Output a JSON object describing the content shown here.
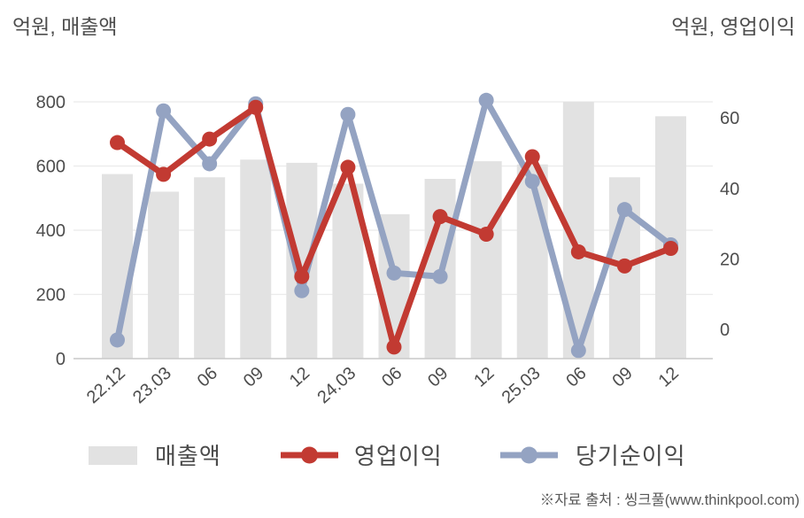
{
  "titles": {
    "left_axis_unit": "억원, 매출액",
    "right_axis_unit": "억원, 영업이익"
  },
  "footer": {
    "source": "※자료 출처 : 씽크풀(www.thinkpool.com)"
  },
  "colors": {
    "bar": "#e2e2e2",
    "operating_profit_line": "#c23a32",
    "net_profit_line": "#94a3c2",
    "gridline": "#ebebeb",
    "axis_line": "#c9c9c9",
    "text": "#4d4d4d"
  },
  "chart_data": {
    "type": "bar",
    "subtype": "combo bar+line, dual y-axis",
    "categories": [
      "22.12",
      "23.03",
      "06",
      "09",
      "12",
      "24.03",
      "06",
      "09",
      "12",
      "25.03",
      "06",
      "09",
      "12"
    ],
    "series": [
      {
        "name": "매출액",
        "type": "bar",
        "yaxis": "left",
        "color": "#e2e2e2",
        "values": [
          575,
          520,
          565,
          620,
          610,
          545,
          450,
          560,
          615,
          605,
          800,
          565,
          755
        ]
      },
      {
        "name": "영업이익",
        "type": "line",
        "yaxis": "right",
        "color": "#c23a32",
        "values": [
          53,
          44,
          54,
          63,
          15,
          46,
          -5,
          32,
          27,
          49,
          22,
          18,
          23
        ]
      },
      {
        "name": "당기순이익",
        "type": "line",
        "yaxis": "right",
        "color": "#94a3c2",
        "values": [
          -3,
          62,
          47,
          64,
          11,
          61,
          16,
          15,
          65,
          42,
          -6,
          34,
          24
        ]
      }
    ],
    "left_axis": {
      "title": "억원, 매출액",
      "ticks": [
        0,
        200,
        400,
        600,
        800
      ],
      "range": [
        0,
        800
      ]
    },
    "right_axis": {
      "title": "억원, 영업이익",
      "ticks": [
        0,
        20,
        40,
        60
      ],
      "range": [
        -8,
        66
      ]
    },
    "grid": true,
    "legend_position": "bottom",
    "legend": [
      "매출액",
      "영업이익",
      "당기순이익"
    ]
  }
}
